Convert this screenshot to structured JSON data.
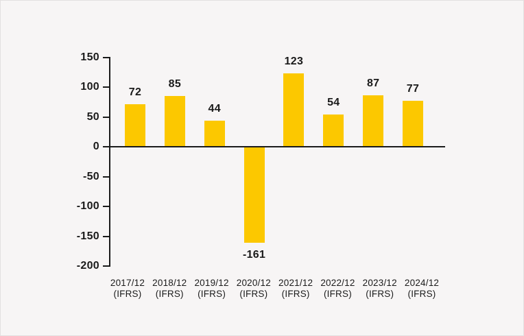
{
  "chart": {
    "background": "#f7f5f5",
    "border_color": "#e3e0e0",
    "text_color": "#1a1a1a",
    "axis_color": "#1a1a1a"
  },
  "chart_data": {
    "type": "bar",
    "categories": [
      "2017/12",
      "2018/12",
      "2019/12",
      "2020/12",
      "2021/12",
      "2022/12",
      "2023/12",
      "2024/12"
    ],
    "category_suffix": "(IFRS)",
    "values": [
      72,
      85,
      44,
      -161,
      123,
      54,
      87,
      77
    ],
    "bar_color": "#fcc800",
    "title": "",
    "xlabel": "",
    "ylabel": "",
    "ylim": [
      -200,
      150
    ],
    "yticks": [
      150,
      100,
      50,
      0,
      -50,
      -100,
      -150,
      -200
    ],
    "grid": false,
    "legend": "none"
  }
}
